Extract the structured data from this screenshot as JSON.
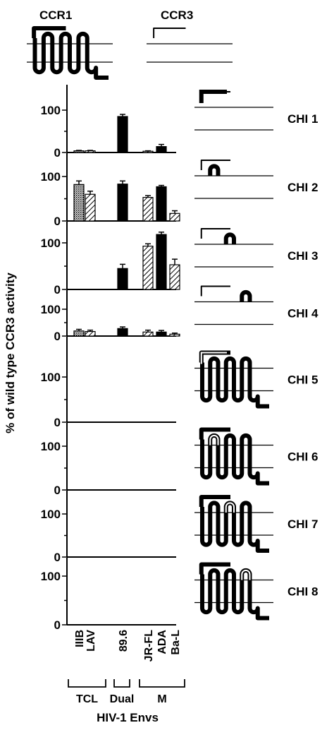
{
  "receptors": {
    "ccr1_label": "CCR1",
    "ccr3_label": "CCR3"
  },
  "y_axis_label": "% of wild type CCR3 activity",
  "x_axis_title": "HIV-1 Envs",
  "env_groups": [
    {
      "name": "TCL",
      "envs": [
        "IIIB",
        "LAV"
      ]
    },
    {
      "name": "Dual",
      "envs": [
        "89.6"
      ]
    },
    {
      "name": "M",
      "envs": [
        "JR-FL",
        "ADA",
        "Ba-L"
      ]
    }
  ],
  "patterns": {
    "IIIB": "cross-hatch",
    "LAV": "diagonal",
    "89.6": "solid",
    "JR-FL": "diagonal",
    "ADA": "solid",
    "Ba-L": "diagonal"
  },
  "colors": {
    "ink": "#000000",
    "background": "#ffffff"
  },
  "chart_data": {
    "type": "bar",
    "categories": [
      "IIIB",
      "LAV",
      "89.6",
      "JR-FL",
      "ADA",
      "Ba-L"
    ],
    "ylim": [
      0,
      140
    ],
    "yticks": [
      0,
      100
    ],
    "ylabel": "% of wild type CCR3 activity",
    "xlabel": "HIV-1 Envs",
    "series": [
      {
        "name": "CHI 1",
        "values": [
          4,
          4,
          85,
          3,
          14,
          null
        ],
        "errors": [
          1,
          1,
          5,
          1,
          5,
          null
        ],
        "domain": "N-terminus"
      },
      {
        "name": "CHI 2",
        "values": [
          82,
          60,
          83,
          53,
          77,
          17
        ],
        "errors": [
          8,
          7,
          7,
          4,
          3,
          6
        ],
        "domain": "ECL1"
      },
      {
        "name": "CHI 3",
        "values": [
          0,
          0,
          45,
          93,
          118,
          53
        ],
        "errors": [
          0,
          0,
          9,
          5,
          5,
          12
        ],
        "domain": "ECL2"
      },
      {
        "name": "CHI 4",
        "values": [
          19,
          17,
          28,
          15,
          15,
          7
        ],
        "errors": [
          6,
          5,
          6,
          7,
          6,
          4
        ],
        "domain": "ECL3"
      },
      {
        "name": "CHI 5",
        "values": [
          0,
          0,
          0,
          0,
          0,
          0
        ],
        "errors": [
          0,
          0,
          0,
          0,
          0,
          0
        ],
        "domain": "N-terminus"
      },
      {
        "name": "CHI 6",
        "values": [
          0,
          0,
          0,
          0,
          0,
          0
        ],
        "errors": [
          0,
          0,
          0,
          0,
          0,
          0
        ],
        "domain": "ECL1"
      },
      {
        "name": "CHI 7",
        "values": [
          0,
          0,
          0,
          0,
          0,
          0
        ],
        "errors": [
          0,
          0,
          0,
          0,
          0,
          0
        ],
        "domain": "ECL2"
      },
      {
        "name": "CHI 8",
        "values": [
          0,
          0,
          0,
          0,
          0,
          0
        ],
        "errors": [
          0,
          0,
          0,
          0,
          0,
          0
        ],
        "domain": "ECL3"
      }
    ],
    "chimera_backbone": [
      "CCR3",
      "CCR3",
      "CCR3",
      "CCR3",
      "CCR1",
      "CCR1",
      "CCR1",
      "CCR1"
    ]
  }
}
